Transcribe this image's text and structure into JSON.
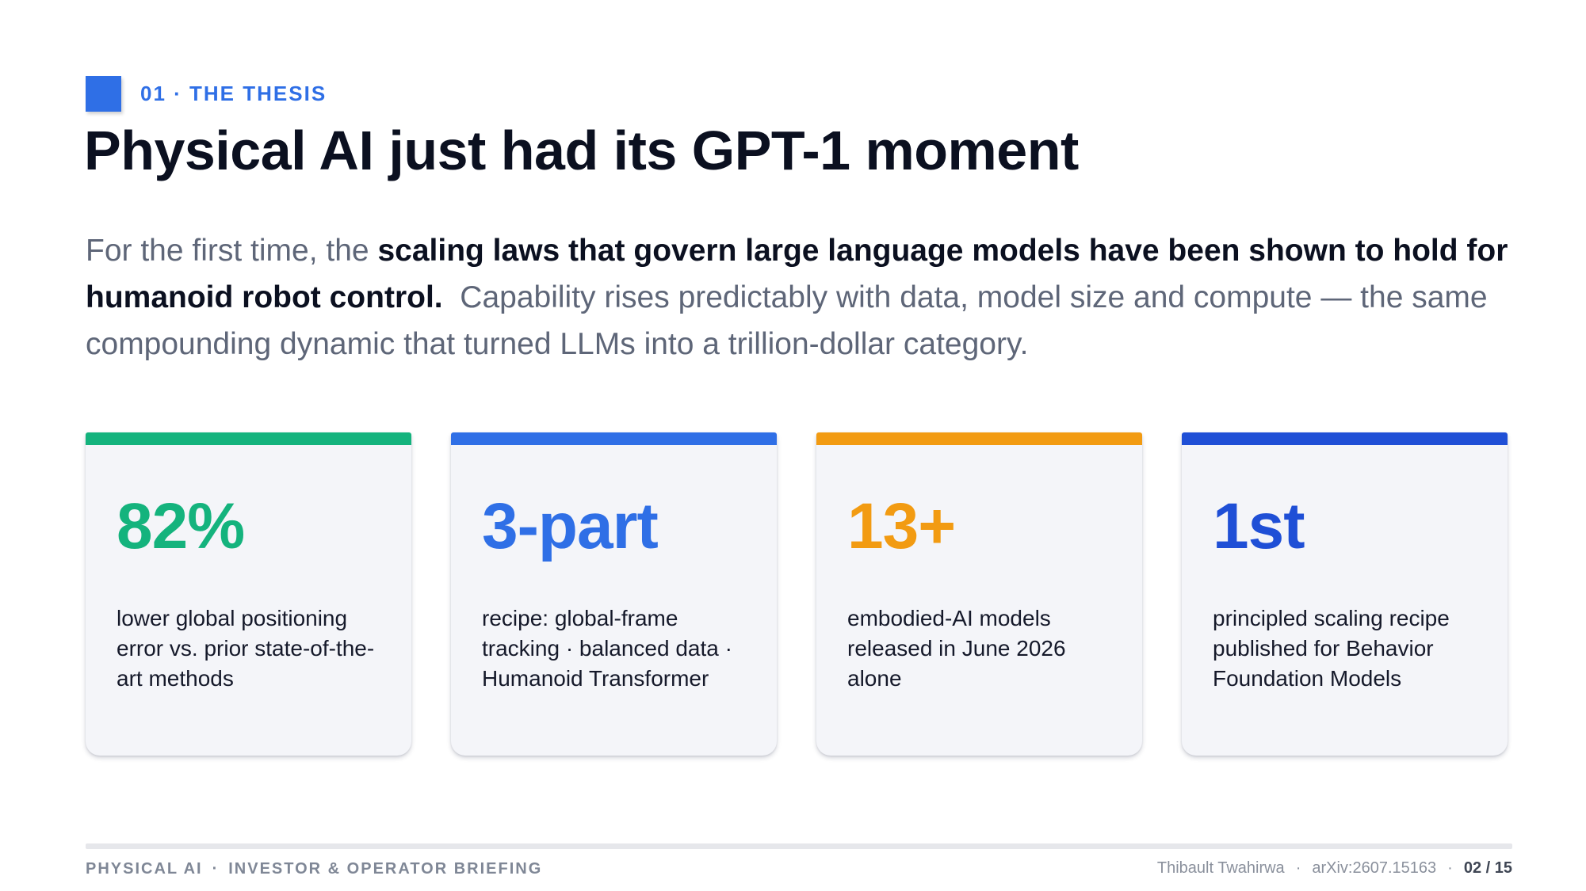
{
  "eyebrow": {
    "label": "01 · THE THESIS"
  },
  "title": "Physical AI just had its GPT-1 moment",
  "lead": {
    "intro": "For the first time, the ",
    "emphasis": "scaling laws that govern large language models have been shown to hold for humanoid robot control.",
    "rest": "Capability rises predictably with data, model size and compute — the same compounding dynamic that turned LLMs into a trillion-dollar category."
  },
  "cards": [
    {
      "value": "82%",
      "description": "lower global positioning error vs. prior state-of-the-art methods",
      "accent": "#14b37d"
    },
    {
      "value": "3-part",
      "description": "recipe: global-frame tracking · balanced data · Humanoid Transformer",
      "accent": "#2f6fe6"
    },
    {
      "value": "13+",
      "description": "embodied-AI models released in June 2026 alone",
      "accent": "#f29b12"
    },
    {
      "value": "1st",
      "description": "principled scaling recipe published for Behavior Foundation Models",
      "accent": "#1f4fd6"
    }
  ],
  "footer": {
    "left_primary": "PHYSICAL AI",
    "left_separator": "·",
    "left_secondary": "INVESTOR & OPERATOR BRIEFING",
    "author": "Thibault Twahirwa",
    "separator": "·",
    "reference": "arXiv:2607.15163",
    "page": "02 / 15"
  },
  "colors": {
    "brand_blue": "#2f6fe6",
    "heading": "#0b1020",
    "body_muted": "#5e6678"
  }
}
